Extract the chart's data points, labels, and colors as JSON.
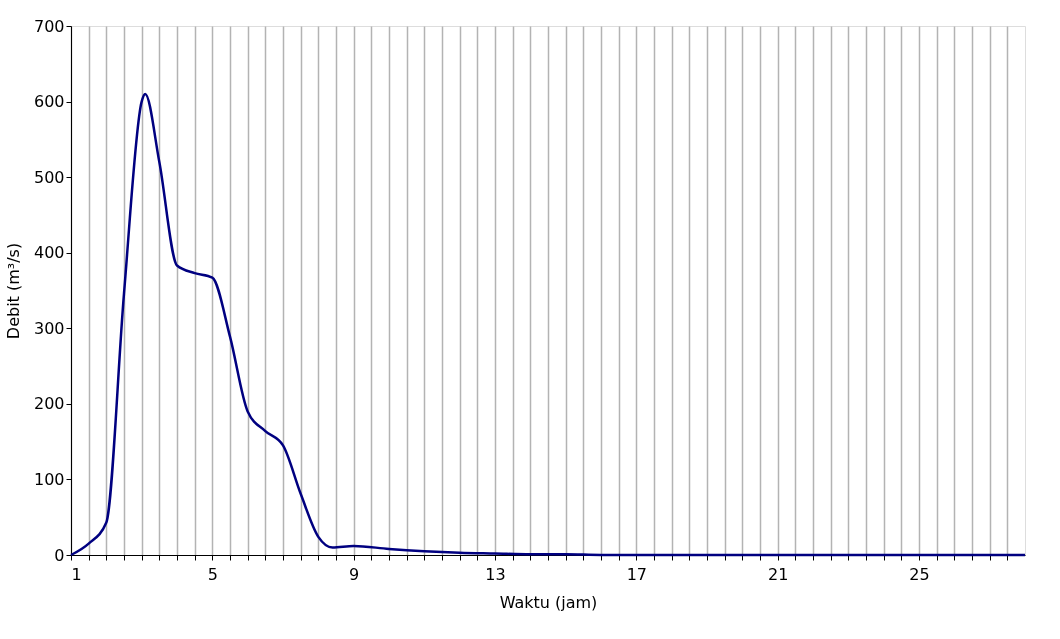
{
  "chart_data": {
    "type": "line",
    "xlabel": "Waktu (jam)",
    "ylabel": "Debit (m³/s)",
    "xlim": [
      1,
      28
    ],
    "ylim": [
      0,
      700
    ],
    "xticks": [
      1,
      {
        "value": 1.5,
        "label": null
      },
      {
        "value": 2,
        "label": null
      },
      {
        "value": 2.5,
        "label": null
      },
      {
        "value": 3,
        "label": null
      },
      {
        "value": 3.5,
        "label": null
      },
      {
        "value": 4,
        "label": null
      },
      {
        "value": 4.5,
        "label": null
      },
      5,
      {
        "value": 5.5,
        "label": null
      },
      {
        "value": 6,
        "label": null
      },
      {
        "value": 6.5,
        "label": null
      },
      {
        "value": 7,
        "label": null
      },
      {
        "value": 7.5,
        "label": null
      },
      {
        "value": 8,
        "label": null
      },
      {
        "value": 8.5,
        "label": null
      },
      9,
      {
        "value": 9.5,
        "label": null
      },
      {
        "value": 10,
        "label": null
      },
      {
        "value": 10.5,
        "label": null
      },
      {
        "value": 11,
        "label": null
      },
      {
        "value": 11.5,
        "label": null
      },
      {
        "value": 12,
        "label": null
      },
      {
        "value": 12.5,
        "label": null
      },
      13,
      {
        "value": 13.5,
        "label": null
      },
      {
        "value": 14,
        "label": null
      },
      {
        "value": 14.5,
        "label": null
      },
      {
        "value": 15,
        "label": null
      },
      {
        "value": 15.5,
        "label": null
      },
      {
        "value": 16,
        "label": null
      },
      {
        "value": 16.5,
        "label": null
      },
      17,
      {
        "value": 17.5,
        "label": null
      },
      {
        "value": 18,
        "label": null
      },
      {
        "value": 18.5,
        "label": null
      },
      {
        "value": 19,
        "label": null
      },
      {
        "value": 19.5,
        "label": null
      },
      {
        "value": 20,
        "label": null
      },
      {
        "value": 20.5,
        "label": null
      },
      21,
      {
        "value": 21.5,
        "label": null
      },
      {
        "value": 22,
        "label": null
      },
      {
        "value": 22.5,
        "label": null
      },
      {
        "value": 23,
        "label": null
      },
      {
        "value": 23.5,
        "label": null
      },
      {
        "value": 24,
        "label": null
      },
      {
        "value": 24.5,
        "label": null
      },
      25,
      {
        "value": 25.5,
        "label": null
      },
      {
        "value": 26,
        "label": null
      },
      {
        "value": 26.5,
        "label": null
      },
      {
        "value": 27,
        "label": null
      },
      {
        "value": 27.5,
        "label": null
      }
    ],
    "yticks": [
      0,
      100,
      200,
      300,
      400,
      500,
      600,
      700
    ],
    "grid": "x",
    "marker": "none",
    "line_style": "solid",
    "series": [
      {
        "color": "#000080",
        "x": [
          1,
          1.5,
          2,
          2.5,
          3,
          3.1,
          3.5,
          4,
          4.5,
          5,
          5.5,
          6,
          6.5,
          7,
          7.5,
          8,
          8.4,
          9,
          10,
          11,
          12,
          13,
          14,
          15,
          16,
          18,
          20,
          22,
          24,
          26,
          28
        ],
        "values": [
          0,
          15,
          43,
          346,
          600,
          610,
          520,
          383,
          373,
          367,
          289,
          190,
          164,
          145,
          81,
          24,
          10,
          12,
          8,
          5,
          3,
          2,
          1,
          1,
          0,
          0,
          0,
          0,
          0,
          0,
          0
        ]
      }
    ]
  }
}
